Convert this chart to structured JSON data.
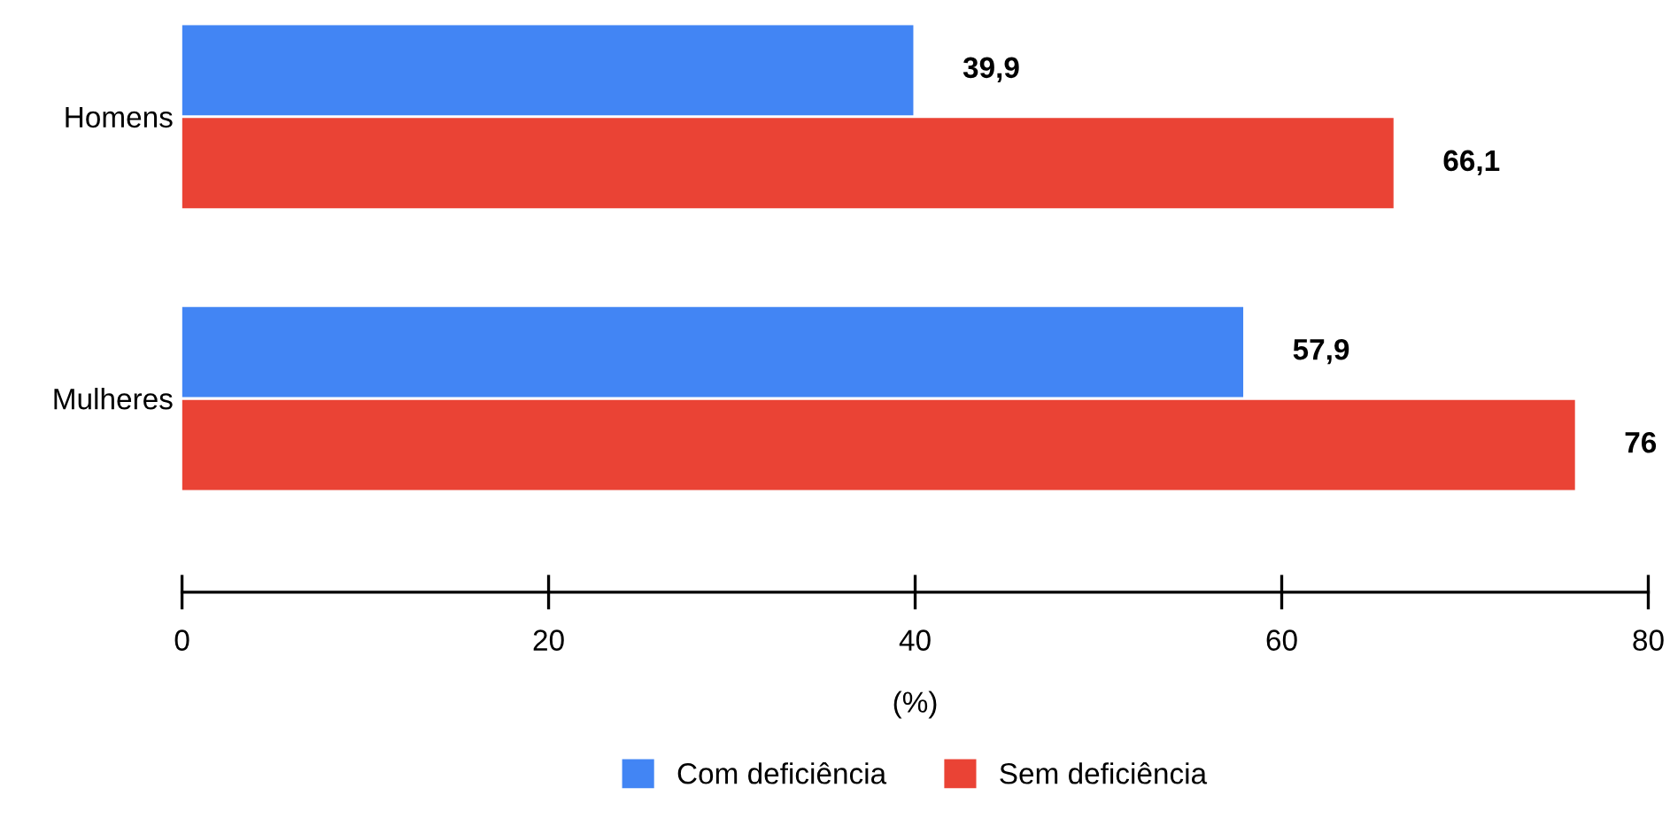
{
  "chart_data": {
    "type": "bar",
    "orientation": "horizontal",
    "categories": [
      "Homens",
      "Mulheres"
    ],
    "series": [
      {
        "name": "Com deficiência",
        "color": "#4285f4",
        "values": [
          39.9,
          57.9
        ],
        "value_labels": [
          "39,9",
          "57,9"
        ]
      },
      {
        "name": "Sem deficiência",
        "color": "#ea4335",
        "values": [
          66.1,
          76
        ],
        "value_labels": [
          "66,1",
          "76"
        ]
      }
    ],
    "xlim": [
      0,
      80
    ],
    "xticks": [
      0,
      20,
      40,
      60,
      80
    ],
    "xlabel": "(%)",
    "legend": "bottom",
    "grid": false
  }
}
